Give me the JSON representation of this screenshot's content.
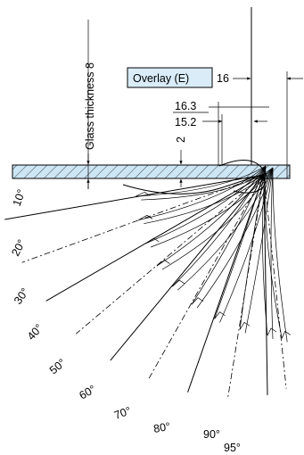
{
  "labels": {
    "overlay": "Overlay (E)",
    "overlay_value": "16",
    "dim_16_3": "16.3",
    "dim_15_2": "15.2",
    "glass_thickness": "Glass thickness 8",
    "dim_2": "2"
  },
  "angles": [
    {
      "label": "10°",
      "deg": 10
    },
    {
      "label": "20°",
      "deg": 20
    },
    {
      "label": "30°",
      "deg": 30
    },
    {
      "label": "40°",
      "deg": 40
    },
    {
      "label": "50°",
      "deg": 50
    },
    {
      "label": "60°",
      "deg": 60
    },
    {
      "label": "70°",
      "deg": 70
    },
    {
      "label": "80°",
      "deg": 80
    },
    {
      "label": "90°",
      "deg": 90
    },
    {
      "label": "95°",
      "deg": 95
    }
  ],
  "colors": {
    "glass_fill": "#cde6f5",
    "overlay_box": "#d9ecf8",
    "line": "#000000"
  }
}
